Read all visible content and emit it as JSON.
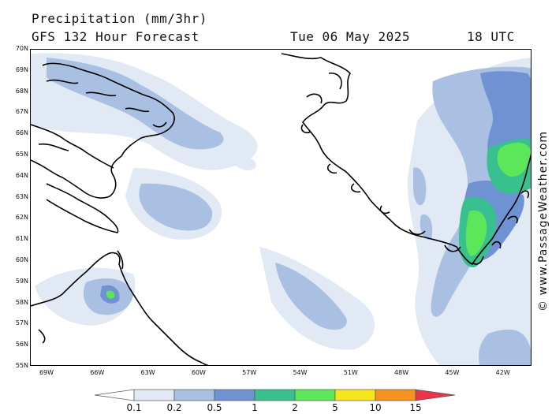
{
  "header": {
    "title": "Precipitation (mm/3hr)",
    "forecast": "GFS 132 Hour Forecast",
    "date": "Tue 06 May 2025",
    "time": "18 UTC"
  },
  "credit": "© www.PassageWeather.com",
  "lat_labels": [
    "70N",
    "69N",
    "68N",
    "67N",
    "66N",
    "65N",
    "64N",
    "63N",
    "62N",
    "61N",
    "60N",
    "59N",
    "58N",
    "57N",
    "56N",
    "55N"
  ],
  "lon_labels": [
    "69W",
    "66W",
    "63W",
    "60W",
    "57W",
    "54W",
    "51W",
    "48W",
    "45W",
    "42W"
  ],
  "legend": {
    "ticks": [
      "0.1",
      "0.2",
      "0.5",
      "1",
      "2",
      "5",
      "10",
      "15"
    ],
    "colors": [
      "#ffffff",
      "#e1e9f5",
      "#a9c0e3",
      "#6f93d2",
      "#38c08f",
      "#5ce65a",
      "#f5e61e",
      "#f6921e",
      "#e8354a"
    ]
  }
}
